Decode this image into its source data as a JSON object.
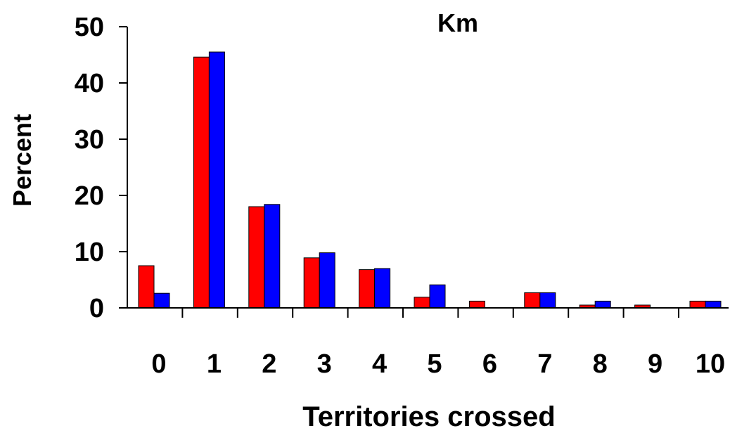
{
  "chart_data": {
    "type": "bar",
    "title": "Km",
    "xlabel": "Territories crossed",
    "ylabel": "Percent",
    "categories": [
      "0",
      "1",
      "2",
      "3",
      "4",
      "5",
      "6",
      "7",
      "8",
      "9",
      "10"
    ],
    "y_ticks": [
      "0",
      "10",
      "20",
      "30",
      "40",
      "50"
    ],
    "ylim": [
      0,
      50
    ],
    "grid": false,
    "legend": "none",
    "series": [
      {
        "color": "#ff0000",
        "values": [
          7.5,
          44.6,
          18.0,
          8.9,
          6.8,
          1.9,
          1.2,
          2.7,
          0.5,
          0.5,
          1.2
        ]
      },
      {
        "color": "#0000ff",
        "values": [
          2.6,
          45.5,
          18.4,
          9.8,
          7.0,
          4.1,
          0,
          2.7,
          1.2,
          0,
          1.2
        ]
      }
    ]
  }
}
